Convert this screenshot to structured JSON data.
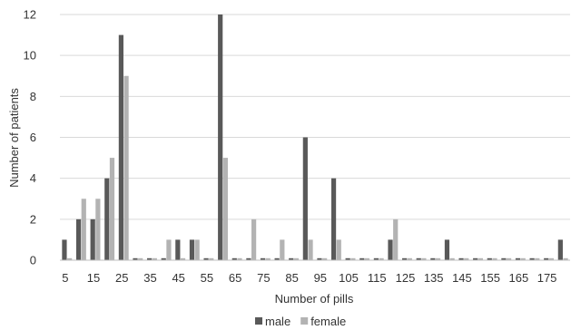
{
  "chart_data": {
    "type": "bar",
    "title": "",
    "xlabel": "Number of pills",
    "ylabel": "Number of patients",
    "ylim": [
      0,
      12
    ],
    "y_ticks": [
      "0",
      "2",
      "4",
      "6",
      "8",
      "10",
      "12"
    ],
    "x": [
      5,
      10,
      15,
      20,
      25,
      30,
      35,
      40,
      45,
      50,
      55,
      60,
      65,
      70,
      75,
      80,
      85,
      90,
      95,
      100,
      105,
      110,
      115,
      120,
      125,
      130,
      135,
      140,
      145,
      150,
      155,
      160,
      165,
      170,
      175,
      180
    ],
    "x_tick_labels": [
      "5",
      "15",
      "25",
      "35",
      "45",
      "55",
      "65",
      "75",
      "85",
      "95",
      "105",
      "115",
      "125",
      "135",
      "145",
      "155",
      "165",
      "175"
    ],
    "grid": true,
    "legend_position": "bottom",
    "series": [
      {
        "name": "male",
        "color": "#595959",
        "values": [
          1,
          2,
          2,
          4,
          11,
          0,
          0,
          0,
          1,
          1,
          0,
          12,
          0,
          0,
          0,
          0,
          0,
          6,
          0,
          4,
          0,
          0,
          0,
          1,
          0,
          0,
          0,
          1,
          0,
          0,
          0,
          0,
          0,
          0,
          0,
          1
        ]
      },
      {
        "name": "female",
        "color": "#b3b3b3",
        "values": [
          0,
          3,
          3,
          5,
          9,
          0,
          0,
          1,
          0,
          1,
          0,
          5,
          0,
          2,
          0,
          1,
          0,
          1,
          0,
          1,
          0,
          0,
          0,
          2,
          0,
          0,
          0,
          0,
          0,
          0,
          0,
          0,
          0,
          0,
          0,
          0
        ]
      }
    ]
  }
}
